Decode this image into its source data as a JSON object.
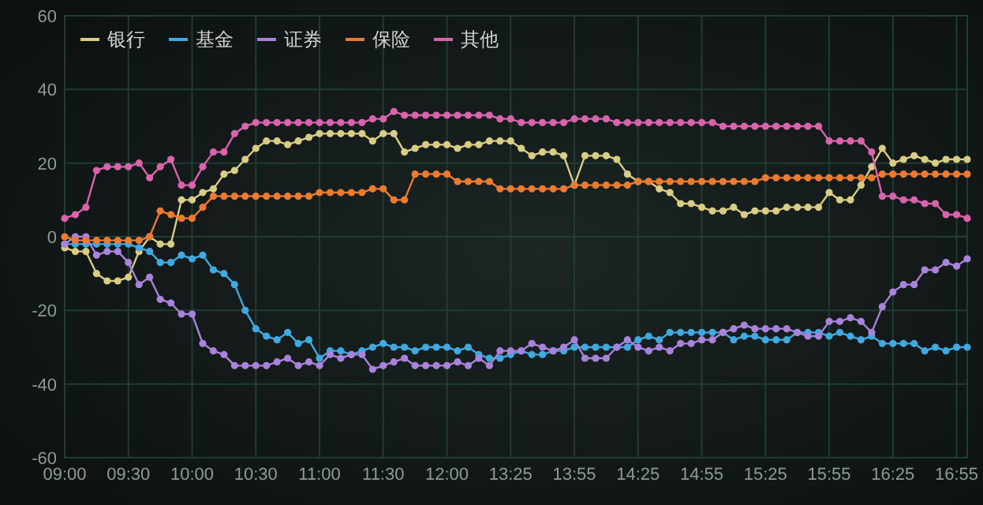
{
  "chart_data": {
    "type": "line",
    "categories": [
      "09:00",
      null,
      null,
      null,
      null,
      null,
      "09:30",
      null,
      null,
      null,
      null,
      null,
      "10:00",
      null,
      null,
      null,
      null,
      null,
      "10:30",
      null,
      null,
      null,
      null,
      null,
      "11:00",
      null,
      null,
      null,
      null,
      null,
      "11:30",
      null,
      null,
      null,
      null,
      null,
      "12:00",
      null,
      null,
      null,
      null,
      null,
      "13:25",
      null,
      null,
      null,
      null,
      null,
      "13:55",
      null,
      null,
      null,
      null,
      null,
      "14:25",
      null,
      null,
      null,
      null,
      null,
      "14:55",
      null,
      null,
      null,
      null,
      null,
      "15:25",
      null,
      null,
      null,
      null,
      null,
      "15:55",
      null,
      null,
      null,
      null,
      null,
      "16:25",
      null,
      null,
      null,
      null,
      null,
      "16:55",
      null
    ],
    "series": [
      {
        "name": "银行",
        "color": "#d9cc84",
        "values": [
          -3,
          -4,
          -4,
          -10,
          -12,
          -12,
          -11,
          -4,
          0,
          -2,
          -2,
          10,
          10,
          12,
          13,
          17,
          18,
          21,
          24,
          26,
          26,
          25,
          26,
          27,
          28,
          28,
          28,
          28,
          28,
          26,
          28,
          28,
          23,
          24,
          25,
          25,
          25,
          24,
          25,
          25,
          26,
          26,
          26,
          24,
          22,
          23,
          23,
          22,
          14,
          22,
          22,
          22,
          21,
          17,
          15,
          15,
          13,
          12,
          9,
          9,
          8,
          7,
          7,
          8,
          6,
          7,
          7,
          7,
          8,
          8,
          8,
          8,
          12,
          10,
          10,
          14,
          19,
          24,
          20,
          21,
          22,
          21,
          20,
          21,
          21,
          21
        ]
      },
      {
        "name": "基金",
        "color": "#3fa9e0",
        "values": [
          -2,
          -2,
          -2,
          -2,
          -2,
          -2,
          -2,
          -3,
          -4,
          -7,
          -7,
          -5,
          -6,
          -5,
          -9,
          -10,
          -13,
          -20,
          -25,
          -27,
          -28,
          -26,
          -29,
          -28,
          -33,
          -31,
          -31,
          -32,
          -31,
          -30,
          -29,
          -30,
          -30,
          -31,
          -30,
          -30,
          -30,
          -31,
          -30,
          -32,
          -33,
          -33,
          -32,
          -31,
          -32,
          -32,
          -31,
          -31,
          -30,
          -30,
          -30,
          -30,
          -30,
          -30,
          -28,
          -27,
          -28,
          -26,
          -26,
          -26,
          -26,
          -26,
          -26,
          -28,
          -27,
          -27,
          -28,
          -28,
          -28,
          -26,
          -26,
          -26,
          -27,
          -26,
          -27,
          -28,
          -27,
          -29,
          -29,
          -29,
          -29,
          -31,
          -30,
          -31,
          -30,
          -30
        ]
      },
      {
        "name": "证券",
        "color": "#a982dc",
        "values": [
          -2,
          0,
          0,
          -5,
          -4,
          -4,
          -7,
          -13,
          -11,
          -17,
          -18,
          -21,
          -21,
          -29,
          -31,
          -32,
          -35,
          -35,
          -35,
          -35,
          -34,
          -33,
          -35,
          -34,
          -35,
          -32,
          -33,
          -32,
          -32,
          -36,
          -35,
          -34,
          -33,
          -35,
          -35,
          -35,
          -35,
          -34,
          -35,
          -33,
          -35,
          -31,
          -31,
          -31,
          -29,
          -30,
          -31,
          -30,
          -28,
          -33,
          -33,
          -33,
          -30,
          -28,
          -30,
          -31,
          -30,
          -31,
          -29,
          -29,
          -28,
          -28,
          -26,
          -25,
          -24,
          -25,
          -25,
          -25,
          -25,
          -26,
          -27,
          -27,
          -23,
          -23,
          -22,
          -23,
          -26,
          -19,
          -15,
          -13,
          -13,
          -9,
          -9,
          -7,
          -8,
          -6
        ]
      },
      {
        "name": "保险",
        "color": "#ec7a30",
        "values": [
          0,
          -1,
          -1,
          -1,
          -1,
          -1,
          -1,
          -1,
          0,
          7,
          6,
          5,
          5,
          8,
          11,
          11,
          11,
          11,
          11,
          11,
          11,
          11,
          11,
          11,
          12,
          12,
          12,
          12,
          12,
          13,
          13,
          10,
          10,
          17,
          17,
          17,
          17,
          15,
          15,
          15,
          15,
          13,
          13,
          13,
          13,
          13,
          13,
          13,
          14,
          14,
          14,
          14,
          14,
          14,
          15,
          15,
          15,
          15,
          15,
          15,
          15,
          15,
          15,
          15,
          15,
          15,
          16,
          16,
          16,
          16,
          16,
          16,
          16,
          16,
          16,
          16,
          16,
          17,
          17,
          17,
          17,
          17,
          17,
          17,
          17,
          17
        ]
      },
      {
        "name": "其他",
        "color": "#d964ad",
        "values": [
          5,
          6,
          8,
          18,
          19,
          19,
          19,
          20,
          16,
          19,
          21,
          14,
          14,
          19,
          23,
          23,
          28,
          30,
          31,
          31,
          31,
          31,
          31,
          31,
          31,
          31,
          31,
          31,
          31,
          32,
          32,
          34,
          33,
          33,
          33,
          33,
          33,
          33,
          33,
          33,
          33,
          32,
          32,
          31,
          31,
          31,
          31,
          31,
          32,
          32,
          32,
          32,
          31,
          31,
          31,
          31,
          31,
          31,
          31,
          31,
          31,
          31,
          30,
          30,
          30,
          30,
          30,
          30,
          30,
          30,
          30,
          30,
          26,
          26,
          26,
          26,
          23,
          11,
          11,
          10,
          10,
          9,
          9,
          6,
          6,
          5
        ]
      }
    ],
    "ylim": [
      -60,
      60
    ],
    "yticks": [
      -60,
      -40,
      -20,
      0,
      20,
      40,
      60
    ],
    "grid": true,
    "legend": "top left",
    "marker": "circle",
    "line_style": "solid"
  }
}
